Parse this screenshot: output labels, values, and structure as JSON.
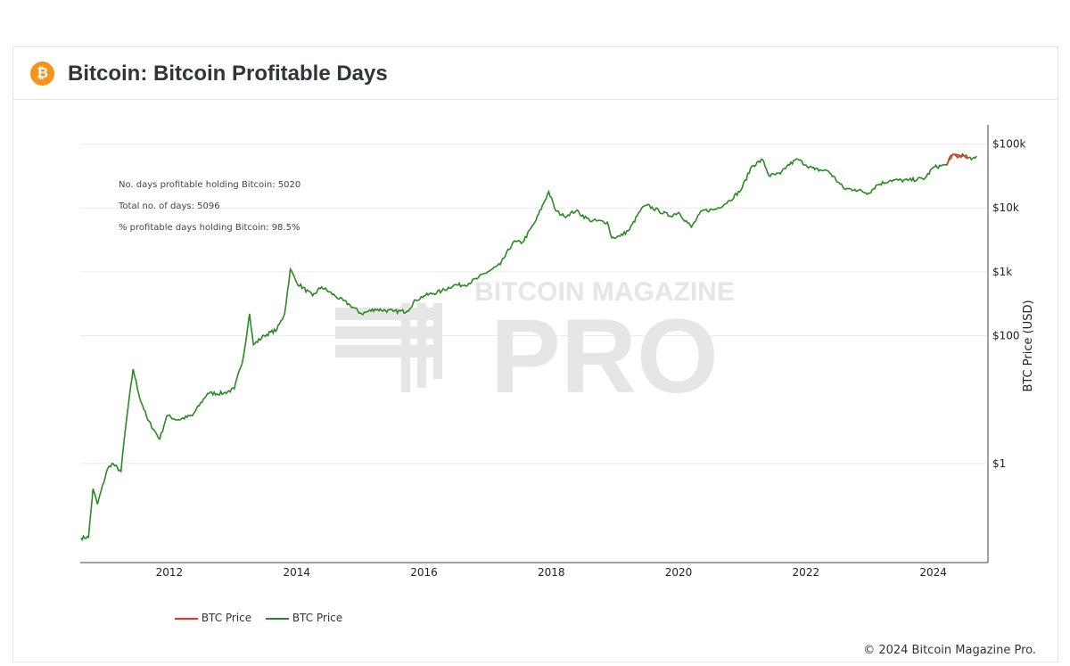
{
  "header": {
    "title": "Bitcoin: Bitcoin Profitable Days",
    "logo_icon": "bitcoin-logo-icon"
  },
  "annotations": [
    "No. days profitable holding Bitcoin: 5020",
    "Total no. of days: 5096",
    "% profitable days holding Bitcoin: 98.5%"
  ],
  "watermark": {
    "line1": "BITCOIN MAGAZINE",
    "line2": "PRO"
  },
  "footer": "© 2024 Bitcoin Magazine Pro.",
  "chart_data": {
    "type": "line",
    "title": "Bitcoin: Bitcoin Profitable Days",
    "xlabel": "",
    "ylabel": "BTC Price (USD)",
    "y_scale": "log",
    "y_axis_side": "right",
    "xlim": [
      2010.6,
      2024.86
    ],
    "ylim": [
      0.028,
      200000
    ],
    "x_ticks": [
      2012,
      2014,
      2016,
      2018,
      2020,
      2022,
      2024
    ],
    "x_tick_labels": [
      "2012",
      "2014",
      "2016",
      "2018",
      "2020",
      "2022",
      "2024"
    ],
    "y_ticks": [
      1,
      100,
      1000,
      10000,
      100000
    ],
    "y_tick_labels": [
      "$1",
      "$100",
      "$1k",
      "$10k",
      "$100k"
    ],
    "grid": true,
    "legend_placement": "bottom-left",
    "colors": {
      "red": "#ff2a2a",
      "green": "#2a8a22"
    },
    "series": [
      {
        "name": "BTC Price",
        "color": "#ff2a2a",
        "x": [
          2024.2,
          2024.3,
          2024.4,
          2024.48,
          2024.55
        ],
        "y": [
          47000,
          68000,
          64000,
          66000,
          60000
        ]
      },
      {
        "name": "BTC Price",
        "color": "#2a8a22",
        "x": [
          2010.61,
          2010.73,
          2010.8,
          2010.87,
          2011.03,
          2011.1,
          2011.24,
          2011.31,
          2011.43,
          2011.52,
          2011.66,
          2011.85,
          2011.96,
          2012.13,
          2012.36,
          2012.6,
          2012.85,
          2013.02,
          2013.16,
          2013.26,
          2013.32,
          2013.49,
          2013.69,
          2013.81,
          2013.9,
          2014.0,
          2014.25,
          2014.39,
          2014.6,
          2014.84,
          2015.02,
          2015.23,
          2015.52,
          2015.73,
          2015.87,
          2016.0,
          2016.28,
          2016.47,
          2016.64,
          2016.85,
          2017.0,
          2017.2,
          2017.4,
          2017.55,
          2017.76,
          2017.96,
          2018.07,
          2018.2,
          2018.39,
          2018.6,
          2018.88,
          2018.95,
          2019.08,
          2019.23,
          2019.41,
          2019.5,
          2019.69,
          2019.86,
          2020.0,
          2020.2,
          2020.37,
          2020.58,
          2020.8,
          2020.98,
          2021.15,
          2021.32,
          2021.42,
          2021.6,
          2021.7,
          2021.87,
          2022.0,
          2022.14,
          2022.35,
          2022.6,
          2022.77,
          2022.98,
          2023.12,
          2023.33,
          2023.6,
          2023.87,
          2024.0,
          2024.2,
          2024.3,
          2024.48,
          2024.6,
          2024.68
        ],
        "y": [
          0.068,
          0.07,
          0.4,
          0.23,
          0.83,
          1.0,
          0.75,
          3.5,
          30,
          12,
          4.8,
          2.4,
          5.6,
          4.8,
          5.6,
          12.5,
          12.5,
          14.7,
          45,
          220,
          72,
          100,
          125,
          220,
          1100,
          680,
          420,
          580,
          420,
          300,
          220,
          260,
          240,
          240,
          360,
          420,
          500,
          620,
          620,
          800,
          1000,
          1300,
          2900,
          2900,
          6400,
          18000,
          9000,
          7400,
          9000,
          6400,
          6000,
          3400,
          3600,
          4600,
          9500,
          11000,
          9000,
          7500,
          8500,
          5000,
          9000,
          9500,
          13000,
          19000,
          45000,
          57000,
          32000,
          34000,
          45000,
          58000,
          47000,
          40000,
          38000,
          20000,
          19500,
          17000,
          23000,
          27000,
          27000,
          29000,
          43000,
          47000,
          68000,
          66000,
          57000,
          65000
        ]
      }
    ]
  }
}
